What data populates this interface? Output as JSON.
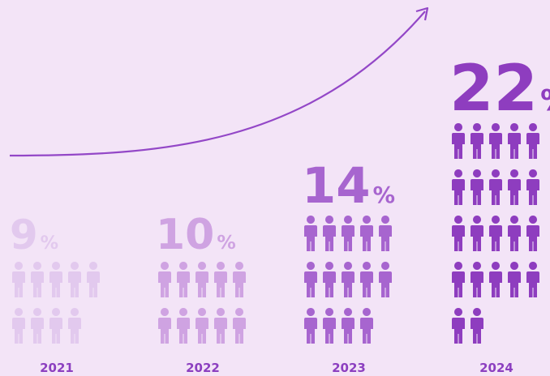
{
  "chart_data": {
    "type": "pictograph",
    "categories": [
      "2021",
      "2022",
      "2023",
      "2024"
    ],
    "values": [
      9,
      10,
      14,
      22
    ],
    "unit": "%",
    "colors": [
      "#e2c9ee",
      "#cfa3e2",
      "#a765cf",
      "#8e3dbf"
    ],
    "per_row": 5
  }
}
